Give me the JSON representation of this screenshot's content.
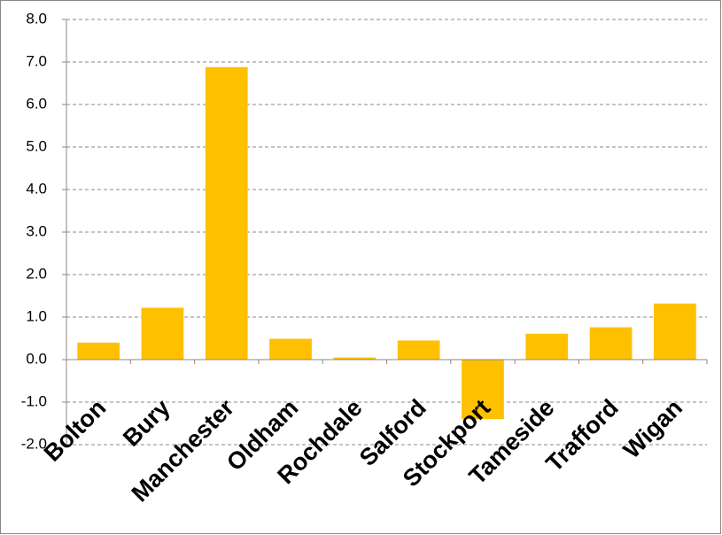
{
  "chart_data": {
    "type": "bar",
    "categories": [
      "Bolton",
      "Bury",
      "Manchester",
      "Oldham",
      "Rochdale",
      "Salford",
      "Stockport",
      "Tameside",
      "Trafford",
      "Wigan"
    ],
    "values": [
      0.4,
      1.22,
      6.88,
      0.49,
      0.05,
      0.45,
      -1.4,
      0.61,
      0.76,
      1.32
    ],
    "color": "#ffc000",
    "ylim": [
      -2,
      8
    ],
    "yticks": [
      {
        "value": -2,
        "label": "-2.0"
      },
      {
        "value": -1,
        "label": "-1.0"
      },
      {
        "value": 0,
        "label": "0.0"
      },
      {
        "value": 1,
        "label": "1.0"
      },
      {
        "value": 2,
        "label": "2.0"
      },
      {
        "value": 3,
        "label": "3.0"
      },
      {
        "value": 4,
        "label": "4.0"
      },
      {
        "value": 5,
        "label": "5.0"
      },
      {
        "value": 6,
        "label": "6.0"
      },
      {
        "value": 7,
        "label": "7.0"
      },
      {
        "value": 8,
        "label": "8.0"
      }
    ],
    "grid": true
  }
}
